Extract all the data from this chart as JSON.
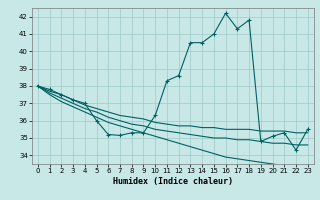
{
  "xlabel": "Humidex (Indice chaleur)",
  "bg_color": "#c8e8e8",
  "grid_color": "#a0c8c8",
  "line_color": "#006060",
  "xlim": [
    -0.5,
    23.5
  ],
  "ylim": [
    33.5,
    42.5
  ],
  "xticks": [
    0,
    1,
    2,
    3,
    4,
    5,
    6,
    7,
    8,
    9,
    10,
    11,
    12,
    13,
    14,
    15,
    16,
    17,
    18,
    19,
    20,
    21,
    22,
    23
  ],
  "yticks": [
    34,
    35,
    36,
    37,
    38,
    39,
    40,
    41,
    42
  ],
  "main_curve": [
    38.0,
    37.8,
    37.5,
    37.2,
    37.0,
    36.0,
    35.2,
    35.15,
    35.3,
    35.3,
    36.3,
    38.3,
    38.6,
    40.5,
    40.5,
    41.0,
    42.2,
    41.3,
    41.8,
    34.8,
    35.1,
    35.3,
    34.3,
    35.5
  ],
  "aux_curves": [
    [
      38.0,
      37.5,
      37.1,
      36.8,
      36.5,
      36.2,
      35.9,
      35.7,
      35.5,
      35.3,
      35.1,
      34.9,
      34.7,
      34.5,
      34.3,
      34.1,
      33.9,
      33.8,
      33.7,
      33.6,
      33.5,
      33.4,
      33.3,
      33.2
    ],
    [
      38.0,
      37.6,
      37.3,
      37.0,
      36.7,
      36.5,
      36.2,
      36.0,
      35.8,
      35.7,
      35.5,
      35.4,
      35.3,
      35.2,
      35.1,
      35.0,
      35.0,
      34.9,
      34.9,
      34.8,
      34.7,
      34.7,
      34.6,
      34.6
    ],
    [
      38.0,
      37.7,
      37.5,
      37.2,
      36.9,
      36.7,
      36.5,
      36.3,
      36.2,
      36.1,
      35.9,
      35.8,
      35.7,
      35.7,
      35.6,
      35.6,
      35.5,
      35.5,
      35.5,
      35.4,
      35.4,
      35.4,
      35.3,
      35.3
    ]
  ]
}
